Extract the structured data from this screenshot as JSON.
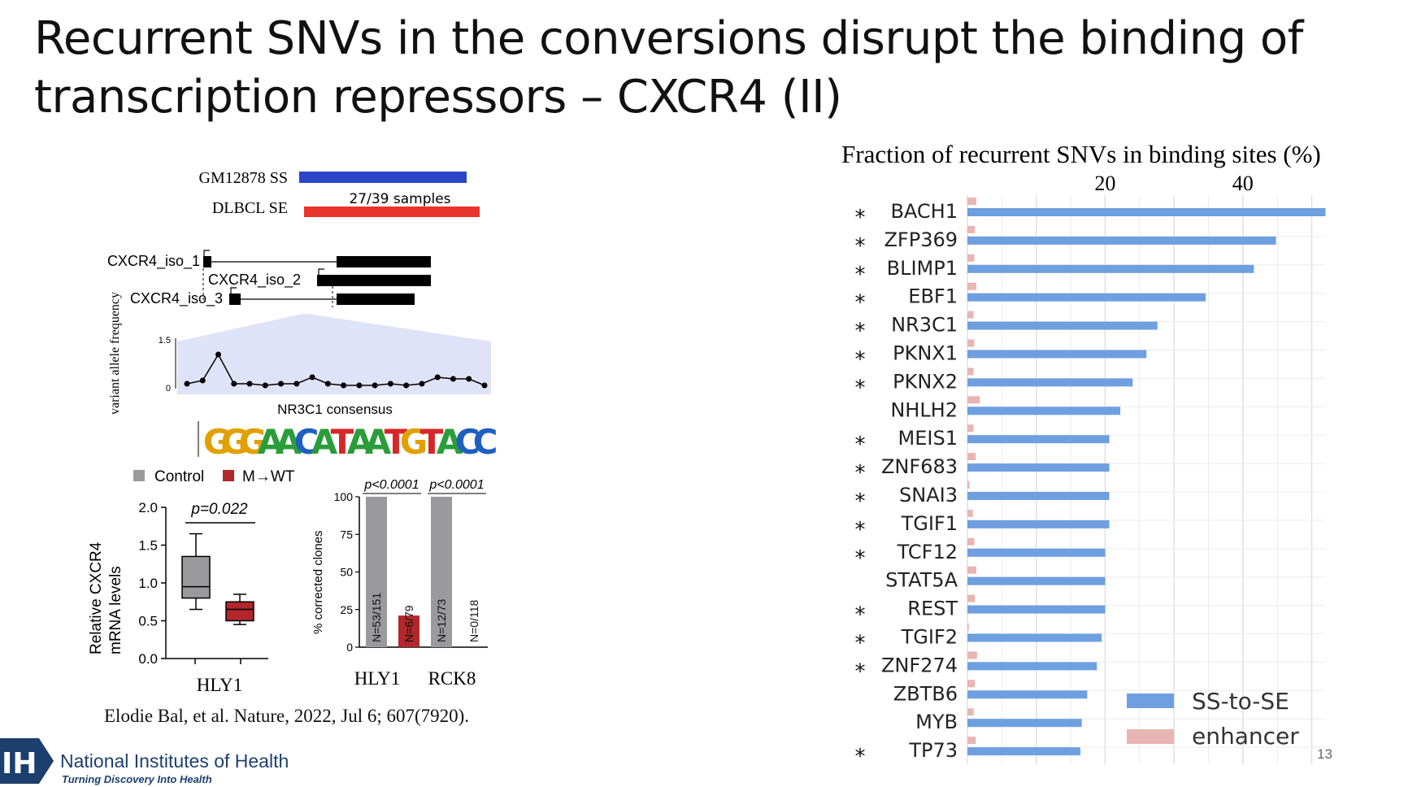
{
  "slide": {
    "title_line1": "Recurrent SNVs in the conversions disrupt the binding of",
    "title_line2": "transcription repressors – CXCR4 (II)",
    "citation": "Elodie Bal, et al. Nature, 2022, Jul 6; 607(7920).",
    "slide_number": "13",
    "nih": {
      "logo_text": "IH",
      "name": "National Institutes of Health",
      "tagline": "Turning Discovery Into Health"
    }
  },
  "gene_panel": {
    "tracks": [
      {
        "label": "GM12878 SS",
        "color": "#2b45c9",
        "annotation": ""
      },
      {
        "label": "DLBCL SE",
        "color": "#e8342c",
        "annotation": "27/39 samples"
      }
    ],
    "isoforms": [
      "CXCR4_iso_1",
      "CXCR4_iso_2",
      "CXCR4_iso_3"
    ],
    "vaf": {
      "ylabel": "variant allele frequency",
      "yticks": [
        "1.5",
        "0"
      ],
      "values": [
        0.1,
        0.2,
        1.0,
        0.1,
        0.1,
        0.05,
        0.1,
        0.1,
        0.3,
        0.1,
        0.05,
        0.05,
        0.05,
        0.1,
        0.05,
        0.1,
        0.3,
        0.25,
        0.25,
        0.05
      ]
    },
    "motif_title": "NR3C1 consensus",
    "motif_letters": [
      "G",
      "G",
      "G",
      "A",
      "A",
      "C",
      "A",
      "T",
      "A",
      "A",
      "T",
      "G",
      "T",
      "A",
      "C",
      "C"
    ],
    "motif_colors": [
      "#e0a100",
      "#e0a100",
      "#e0a100",
      "#2a9d3a",
      "#2a9d3a",
      "#1f5fbf",
      "#2a9d3a",
      "#d62728",
      "#2a9d3a",
      "#2a9d3a",
      "#d62728",
      "#e0a100",
      "#d62728",
      "#2a9d3a",
      "#1f5fbf",
      "#1f5fbf"
    ]
  },
  "legend_small": {
    "control": "Control",
    "mwt": "M→WT",
    "control_color": "#9a9a9c",
    "mwt_color": "#b1272b"
  },
  "boxplot": {
    "ylabel_line1": "Relative CXCR4",
    "ylabel_line2": "mRNA levels",
    "yticks": [
      "0.0",
      "0.5",
      "1.0",
      "1.5",
      "2.0"
    ],
    "xlabel": "HLY1",
    "pvalue": "p=0.022",
    "boxes": [
      {
        "name": "Control",
        "min": 0.65,
        "q1": 0.8,
        "median": 0.95,
        "q3": 1.35,
        "max": 1.65
      },
      {
        "name": "M→WT",
        "min": 0.45,
        "q1": 0.5,
        "median": 0.65,
        "q3": 0.75,
        "max": 0.85
      }
    ]
  },
  "clones": {
    "ylabel": "% corrected clones",
    "yticks": [
      "0",
      "25",
      "50",
      "75",
      "100"
    ],
    "groups": [
      "HLY1",
      "RCK8"
    ],
    "pvalues": [
      "p<0.0001",
      "p<0.0001"
    ],
    "bars": [
      {
        "group": "HLY1",
        "kind": "control",
        "value": 100,
        "label": "N=53/151"
      },
      {
        "group": "HLY1",
        "kind": "mwt",
        "value": 21,
        "label": "N=6/79"
      },
      {
        "group": "RCK8",
        "kind": "control",
        "value": 100,
        "label": "N=12/73"
      },
      {
        "group": "RCK8",
        "kind": "mwt",
        "value": 0,
        "label": "N=0/118"
      }
    ]
  },
  "chart_data": {
    "type": "bar",
    "orientation": "horizontal",
    "title": "Fraction of recurrent SNVs in binding sites (%)",
    "xticks": [
      20,
      40
    ],
    "xlim": [
      0,
      52
    ],
    "grid": true,
    "legend_position": "bottom-right",
    "categories": [
      "BACH1",
      "ZFP369",
      "BLIMP1",
      "EBF1",
      "NR3C1",
      "PKNX1",
      "PKNX2",
      "NHLH2",
      "MEIS1",
      "ZNF683",
      "SNAI3",
      "TGIF1",
      "TCF12",
      "STAT5A",
      "REST",
      "TGIF2",
      "ZNF274",
      "ZBTB6",
      "MYB",
      "TP73"
    ],
    "significant": [
      true,
      true,
      true,
      true,
      true,
      true,
      true,
      false,
      true,
      true,
      true,
      true,
      true,
      false,
      true,
      true,
      true,
      false,
      false,
      true
    ],
    "significance_marker": "*",
    "series": [
      {
        "name": "SS-to-SE",
        "color": "#6e9fe0",
        "values": [
          52,
          44.8,
          41.6,
          34.6,
          27.6,
          26,
          24,
          22.2,
          20.6,
          20.6,
          20.6,
          20.6,
          20,
          20,
          20,
          19.5,
          18.8,
          17.4,
          16.6,
          16.4
        ]
      },
      {
        "name": "enhancer",
        "color": "#e9b5b2",
        "values": [
          1.3,
          1.1,
          1.0,
          1.3,
          0.9,
          1.0,
          0.9,
          1.8,
          0.9,
          1.2,
          0.3,
          0.8,
          1.0,
          1.3,
          1.1,
          0.2,
          1.4,
          1.1,
          0.9,
          1.2
        ]
      }
    ]
  }
}
